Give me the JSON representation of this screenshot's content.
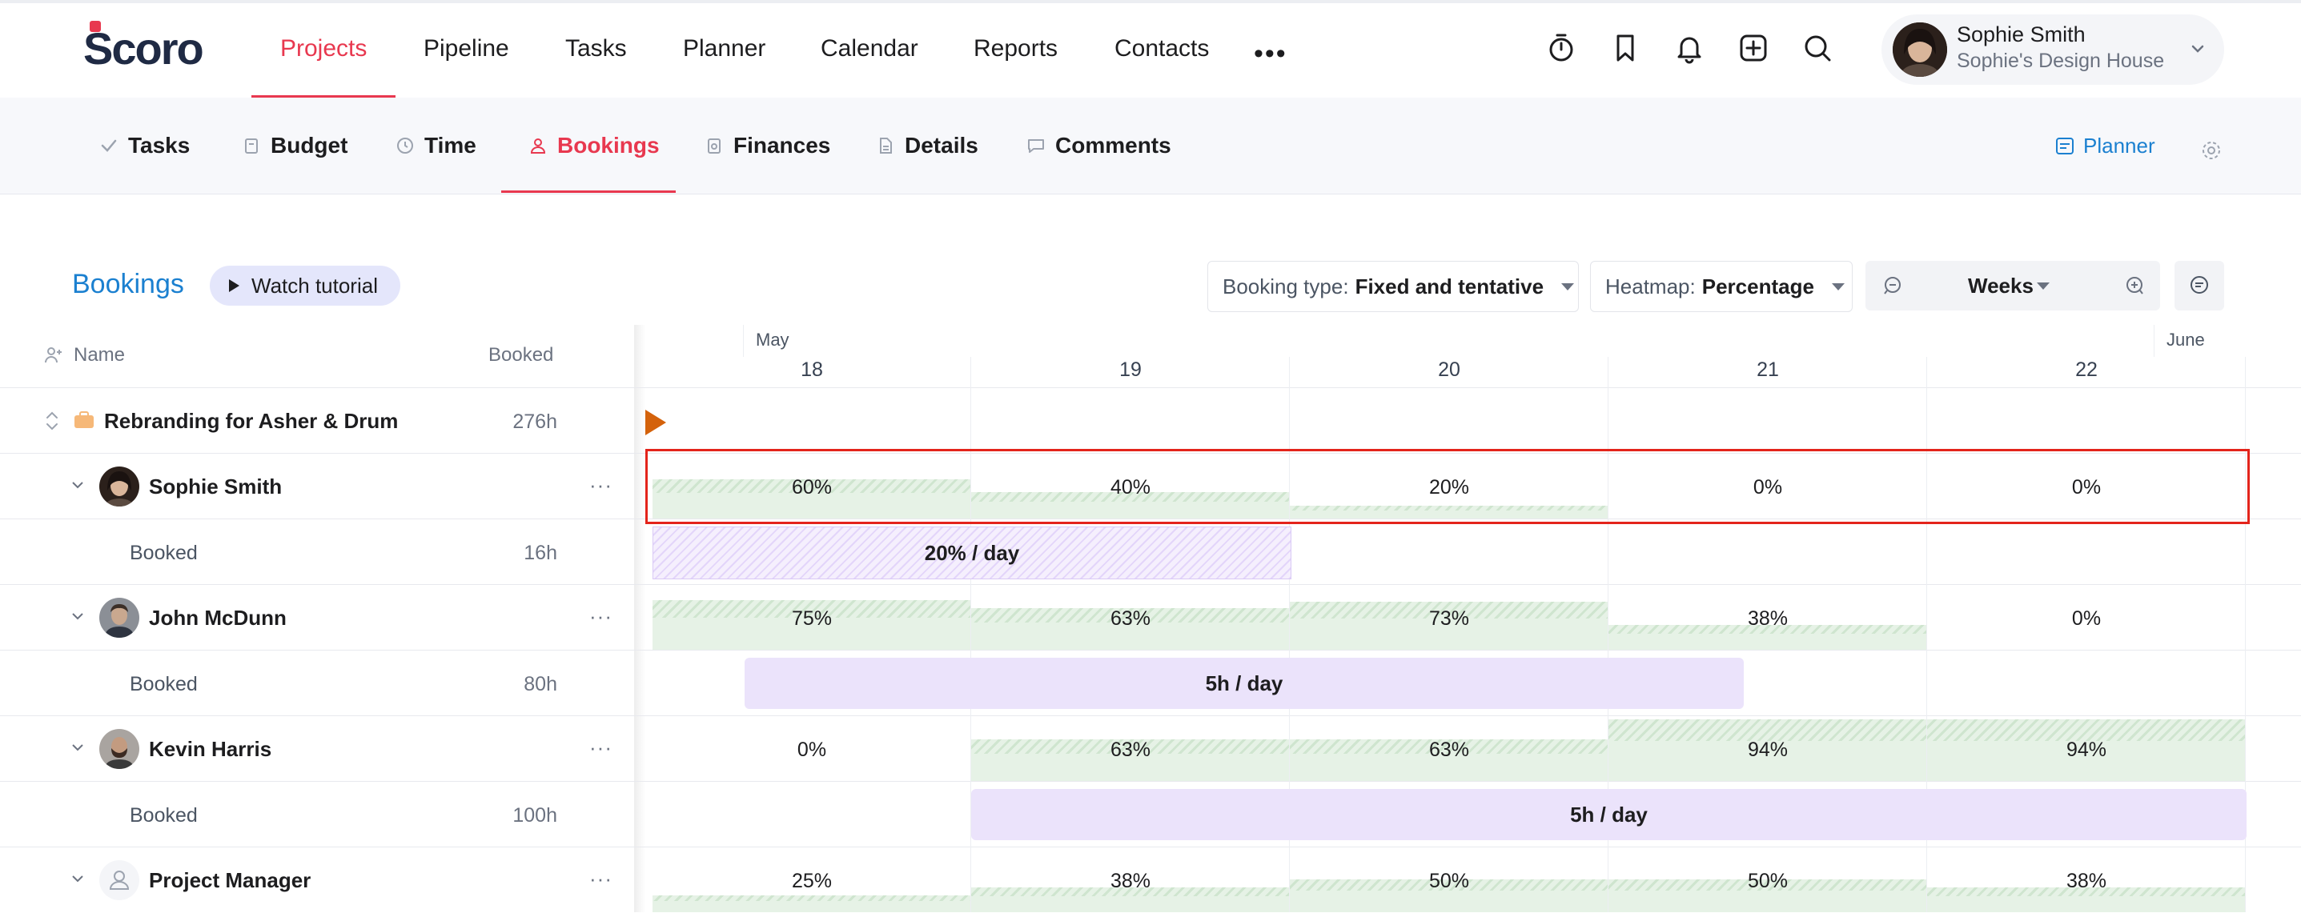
{
  "app": {
    "logo": "Scoro",
    "nav": [
      "Projects",
      "Pipeline",
      "Tasks",
      "Planner",
      "Calendar",
      "Reports",
      "Contacts"
    ],
    "more": "•••",
    "user": {
      "name": "Sophie Smith",
      "company": "Sophie's Design House"
    }
  },
  "subnav": {
    "tabs": [
      "Tasks",
      "Budget",
      "Time",
      "Bookings",
      "Finances",
      "Details",
      "Comments"
    ],
    "planner_link": "Planner"
  },
  "toolbar": {
    "title": "Bookings",
    "tutorial": "Watch tutorial",
    "booking_type_label": "Booking type:",
    "booking_type_value": "Fixed and tentative",
    "heatmap_label": "Heatmap:",
    "heatmap_value": "Percentage",
    "zoom_value": "Weeks"
  },
  "columns": {
    "name": "Name",
    "booked": "Booked"
  },
  "timeline": {
    "months": [
      "May",
      "June"
    ],
    "weeks": [
      "18",
      "19",
      "20",
      "21",
      "22"
    ]
  },
  "rows": {
    "project": {
      "name": "Rebranding for Asher & Drum",
      "hours": "276h"
    },
    "sophie": {
      "name": "Sophie Smith",
      "dots": "···",
      "pct": [
        "60%",
        "40%",
        "20%",
        "0%",
        "0%"
      ],
      "fill": [
        0.6,
        0.4,
        0.2,
        0,
        0
      ]
    },
    "sophie_booked": {
      "label": "Booked",
      "hours": "16h",
      "bar": "20% / day"
    },
    "john": {
      "name": "John McDunn",
      "dots": "···",
      "pct": [
        "75%",
        "63%",
        "73%",
        "38%",
        "0%"
      ],
      "fill": [
        0.75,
        0.63,
        0.73,
        0.38,
        0
      ]
    },
    "john_booked": {
      "label": "Booked",
      "hours": "80h",
      "bar": "5h / day"
    },
    "kevin": {
      "name": "Kevin Harris",
      "dots": "···",
      "pct": [
        "0%",
        "63%",
        "63%",
        "94%",
        "94%"
      ],
      "fill": [
        0,
        0.63,
        0.63,
        0.94,
        0.94
      ]
    },
    "kevin_booked": {
      "label": "Booked",
      "hours": "100h",
      "bar": "5h / day"
    },
    "pm": {
      "name": "Project Manager",
      "dots": "···",
      "pct": [
        "25%",
        "38%",
        "50%",
        "50%",
        "38%"
      ],
      "fill": [
        0.25,
        0.38,
        0.5,
        0.5,
        0.38
      ]
    }
  },
  "colors": {
    "accent": "#e8384f",
    "link": "#1b80d0",
    "highlight": "#e3241b",
    "today": "#d4620b",
    "heat": "#e6f2e6",
    "booking": "#ebe3fb"
  }
}
